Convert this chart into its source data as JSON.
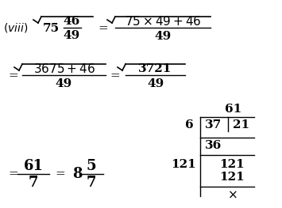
{
  "background_color": "#ffffff",
  "figsize": [
    3.55,
    2.63
  ],
  "dpi": 100,
  "font_color": "#000000",
  "fs_base": 10,
  "fs_large": 11
}
